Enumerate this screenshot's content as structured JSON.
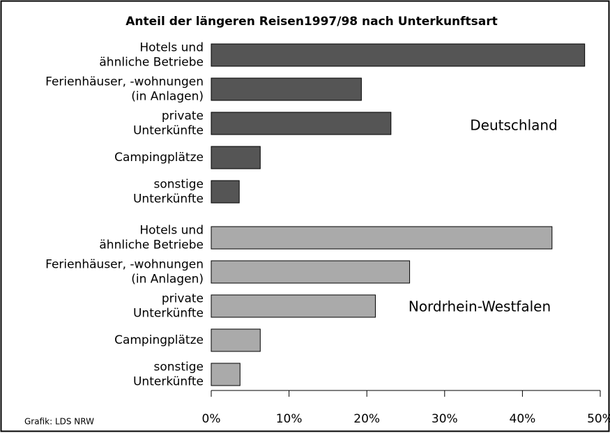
{
  "chart_data": {
    "type": "bar",
    "orientation": "horizontal",
    "title": "Anteil der längeren Reisen1997/98 nach Unterkunftsart",
    "source": "Grafik: LDS NRW",
    "groups": [
      {
        "name": "Deutschland",
        "color": "#555555",
        "categories": [
          [
            "Hotels und",
            "ähnliche Betriebe"
          ],
          [
            "Ferienhäuser, -wohnungen",
            "(in Anlagen)"
          ],
          [
            "private",
            "Unterkünfte"
          ],
          [
            "Campingplätze"
          ],
          [
            "sonstige",
            "Unterkünfte"
          ]
        ],
        "values": [
          48,
          19.3,
          23.1,
          6.3,
          3.6
        ]
      },
      {
        "name": "Nordrhein-Westfalen",
        "color": "#aaaaaa",
        "categories": [
          [
            "Hotels und",
            "ähnliche Betriebe"
          ],
          [
            "Ferienhäuser, -wohnungen",
            "(in Anlagen)"
          ],
          [
            "private",
            "Unterkünfte"
          ],
          [
            "Campingplätze"
          ],
          [
            "sonstige",
            "Unterkünfte"
          ]
        ],
        "values": [
          43.8,
          25.5,
          21.1,
          6.3,
          3.7
        ]
      }
    ],
    "xlim": [
      0,
      50
    ],
    "xticks": [
      {
        "value": 0,
        "label": "0%"
      },
      {
        "value": 10,
        "label": "10%"
      },
      {
        "value": 20,
        "label": "20%"
      },
      {
        "value": 30,
        "label": "30%"
      },
      {
        "value": 40,
        "label": "40%"
      },
      {
        "value": 50,
        "label": "50%"
      }
    ]
  }
}
